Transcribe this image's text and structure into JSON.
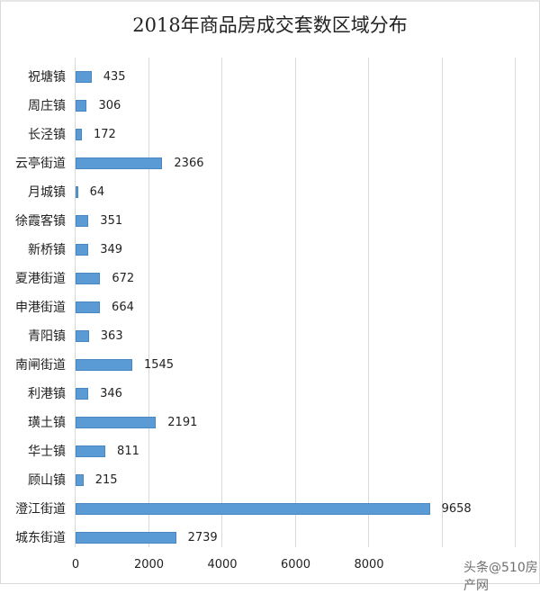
{
  "chart_data": {
    "type": "bar",
    "orientation": "horizontal",
    "title": "2018年商品房成交套数区域分布",
    "xlabel": "",
    "ylabel": "",
    "xlim": [
      0,
      12000
    ],
    "x_ticks": [
      "0",
      "2000",
      "4000",
      "6000",
      "8000"
    ],
    "grid": true,
    "legend": null,
    "color": "#5b9bd5",
    "categories": [
      "祝塘镇",
      "周庄镇",
      "长泾镇",
      "云亭街道",
      "月城镇",
      "徐霞客镇",
      "新桥镇",
      "夏港街道",
      "申港街道",
      "青阳镇",
      "南闸街道",
      "利港镇",
      "璜土镇",
      "华士镇",
      "顾山镇",
      "澄江街道",
      "城东街道"
    ],
    "values": [
      435,
      306,
      172,
      2366,
      64,
      351,
      349,
      672,
      664,
      363,
      1545,
      346,
      2191,
      811,
      215,
      9658,
      2739
    ],
    "value_labels": [
      "435",
      "306",
      "172",
      "2366",
      "64",
      "351",
      "349",
      "672",
      "664",
      "363",
      "1545",
      "346",
      "2191",
      "811",
      "215",
      "9658",
      "2739"
    ]
  },
  "watermark": "头条@510房产网"
}
